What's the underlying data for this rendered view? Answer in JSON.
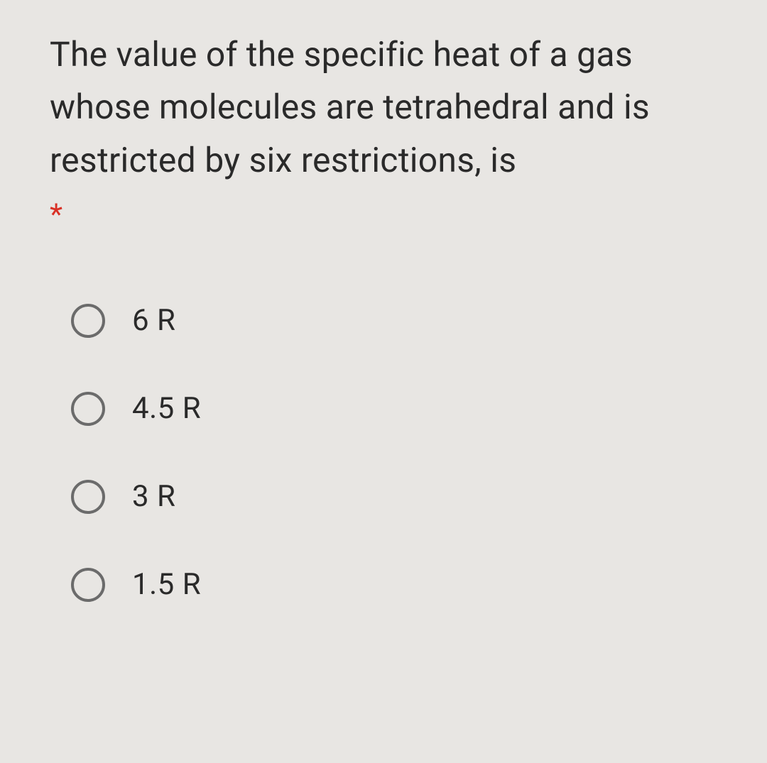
{
  "question": {
    "text": "The value of the specific heat of a gas whose molecules are tetrahedral and is restricted by six restrictions, is",
    "required_marker": "*",
    "text_color": "#2a2a2a",
    "asterisk_color": "#d93025",
    "fontsize": 48
  },
  "options": [
    {
      "label": "6 R"
    },
    {
      "label": "4.5 R"
    },
    {
      "label": "3 R"
    },
    {
      "label": "1.5 R"
    }
  ],
  "styling": {
    "background_color": "#e8e6e3",
    "radio_border_color": "#6b6b6b",
    "option_fontsize": 42,
    "option_color": "#2a2a2a"
  }
}
